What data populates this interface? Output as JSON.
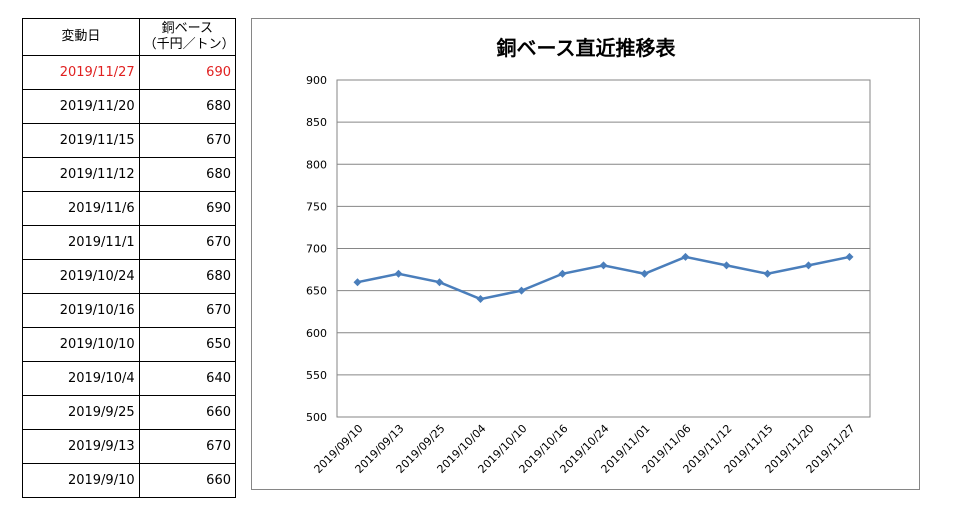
{
  "table": {
    "header_date": "変動日",
    "header_price_line1": "銅ベース",
    "header_price_line2": "（千円／トン）",
    "rows": [
      {
        "date": "2019/11/27",
        "price": "690",
        "highlight": true
      },
      {
        "date": "2019/11/20",
        "price": "680"
      },
      {
        "date": "2019/11/15",
        "price": "670"
      },
      {
        "date": "2019/11/12",
        "price": "680"
      },
      {
        "date": "2019/11/6",
        "price": "690"
      },
      {
        "date": "2019/11/1",
        "price": "670"
      },
      {
        "date": "2019/10/24",
        "price": "680"
      },
      {
        "date": "2019/10/16",
        "price": "670"
      },
      {
        "date": "2019/10/10",
        "price": "650"
      },
      {
        "date": "2019/10/4",
        "price": "640"
      },
      {
        "date": "2019/9/25",
        "price": "660"
      },
      {
        "date": "2019/9/13",
        "price": "670"
      },
      {
        "date": "2019/9/10",
        "price": "660"
      }
    ],
    "highlight_color": "#e02020"
  },
  "chart_data": {
    "type": "line",
    "title": "銅ベース直近推移表",
    "xlabel": "",
    "ylabel": "",
    "ylim": [
      500,
      900
    ],
    "yticks": [
      500,
      550,
      600,
      650,
      700,
      750,
      800,
      850,
      900
    ],
    "grid": true,
    "legend": "none",
    "categories": [
      "2019/09/10",
      "2019/09/13",
      "2019/09/25",
      "2019/10/04",
      "2019/10/10",
      "2019/10/16",
      "2019/10/24",
      "2019/11/01",
      "2019/11/06",
      "2019/11/12",
      "2019/11/15",
      "2019/11/20",
      "2019/11/27"
    ],
    "series": [
      {
        "values": [
          660,
          670,
          660,
          640,
          650,
          670,
          680,
          670,
          690,
          680,
          670,
          680,
          690
        ],
        "color": "#4a7ebb"
      }
    ]
  }
}
